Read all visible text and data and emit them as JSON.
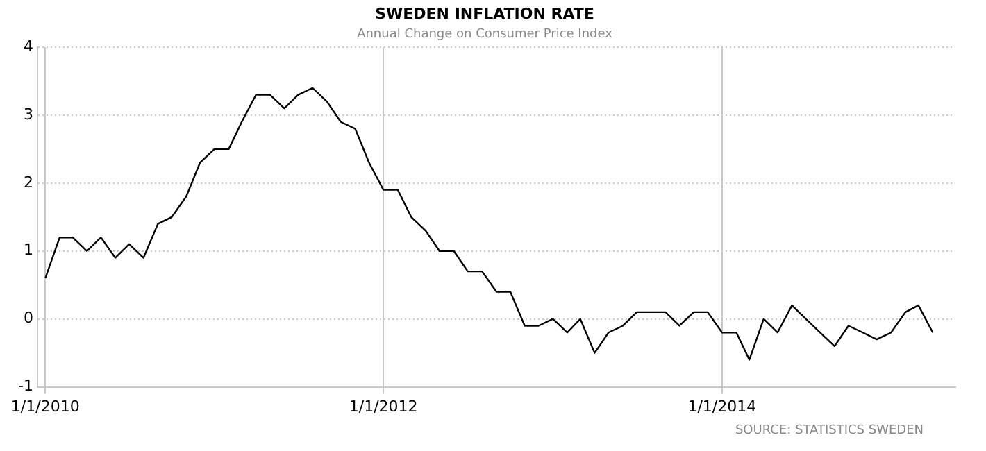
{
  "chart_data": {
    "type": "line",
    "title": "SWEDEN INFLATION RATE",
    "subtitle": "Annual Change on Consumer Price Index",
    "x": [
      "2010-01",
      "2010-02",
      "2010-03",
      "2010-04",
      "2010-05",
      "2010-06",
      "2010-07",
      "2010-08",
      "2010-09",
      "2010-10",
      "2010-11",
      "2010-12",
      "2011-01",
      "2011-02",
      "2011-03",
      "2011-04",
      "2011-05",
      "2011-06",
      "2011-07",
      "2011-08",
      "2011-09",
      "2011-10",
      "2011-11",
      "2011-12",
      "2012-01",
      "2012-02",
      "2012-03",
      "2012-04",
      "2012-05",
      "2012-06",
      "2012-07",
      "2012-08",
      "2012-09",
      "2012-10",
      "2012-11",
      "2012-12",
      "2013-01",
      "2013-02",
      "2013-03",
      "2013-04",
      "2013-05",
      "2013-06",
      "2013-07",
      "2013-08",
      "2013-09",
      "2013-10",
      "2013-11",
      "2013-12",
      "2014-01",
      "2014-02",
      "2014-03",
      "2014-04",
      "2014-05",
      "2014-06",
      "2014-07",
      "2014-08",
      "2014-09",
      "2014-10",
      "2014-11",
      "2014-12",
      "2015-01",
      "2015-02",
      "2015-03",
      "2015-04"
    ],
    "series": [
      {
        "color": "#000000",
        "values": [
          0.6,
          1.2,
          1.2,
          1.0,
          1.2,
          0.9,
          1.1,
          0.9,
          1.4,
          1.5,
          1.8,
          2.3,
          2.5,
          2.5,
          2.9,
          3.3,
          3.3,
          3.1,
          3.3,
          3.4,
          3.2,
          2.9,
          2.8,
          2.3,
          1.9,
          1.9,
          1.5,
          1.3,
          1.0,
          1.0,
          0.7,
          0.7,
          0.4,
          0.4,
          -0.1,
          -0.1,
          0.0,
          -0.2,
          0.0,
          -0.5,
          -0.2,
          -0.1,
          0.1,
          0.1,
          0.1,
          -0.1,
          0.1,
          0.1,
          -0.2,
          -0.2,
          -0.6,
          0.0,
          -0.2,
          0.2,
          0.0,
          -0.2,
          -0.4,
          -0.1,
          -0.2,
          -0.3,
          -0.2,
          0.1,
          0.2,
          -0.2
        ]
      }
    ],
    "xlim": [
      "2009-12-15",
      "2015-05-20"
    ],
    "xticks": [
      {
        "value": "2010-01-01",
        "label": "1/1/2010"
      },
      {
        "value": "2012-01-01",
        "label": "1/1/2012"
      },
      {
        "value": "2014-01-01",
        "label": "1/1/2014"
      }
    ],
    "ylim": [
      -1,
      4
    ],
    "yticks": [
      -1,
      0,
      1,
      2,
      3,
      4
    ],
    "grid": true,
    "marker": "none",
    "line_style": "solid",
    "annotations": [
      "SOURCE: STATISTICS SWEDEN"
    ]
  }
}
